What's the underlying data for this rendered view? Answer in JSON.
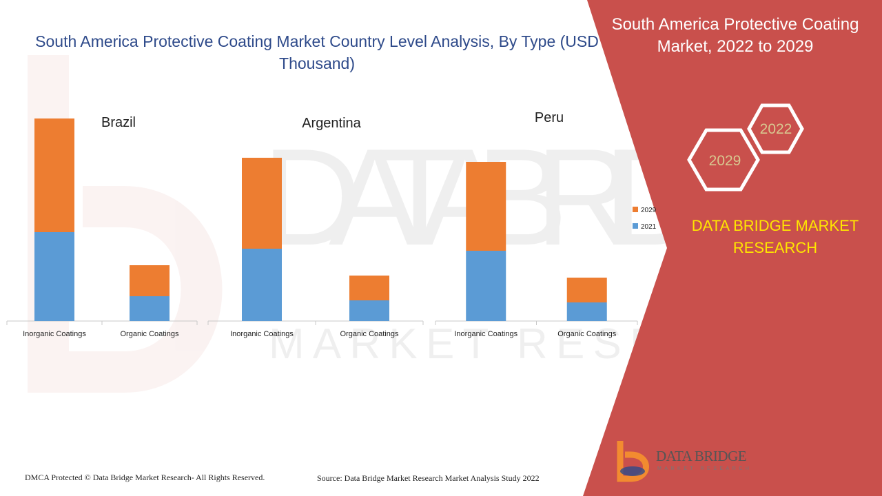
{
  "title": "South America Protective Coating Market Country Level Analysis, By Type (USD Thousand)",
  "side_panel": {
    "title": "South America Protective Coating Market, 2022 to 2029",
    "hex_years": [
      "2022",
      "2029"
    ],
    "brand": "DATA BRIDGE MARKET RESEARCH"
  },
  "footer": {
    "dmca": "DMCA Protected © Data Bridge Market Research- All Rights Reserved.",
    "source": "Source: Data Bridge Market Research Market Analysis Study 2022"
  },
  "logo": {
    "name": "DATA BRIDGE",
    "sub": "MARKET RESEARCH"
  },
  "watermark": {
    "line1": "DATA BRIDGE",
    "line2": "MARKET RESEARCH"
  },
  "colors": {
    "series_2021": "#5b9bd5",
    "series_2029": "#ed7d31",
    "panel": "#c9504c",
    "title": "#2e4a8a",
    "brand": "#ffe600"
  },
  "chart_data": [
    {
      "type": "bar",
      "stacked": true,
      "title": "Brazil",
      "categories": [
        "Inorganic Coatings",
        "Organic Coatings"
      ],
      "series": [
        {
          "name": "2021",
          "values": [
            43,
            12
          ]
        },
        {
          "name": "2029",
          "values": [
            55,
            15
          ]
        }
      ],
      "ylim": [
        0,
        100
      ],
      "grid": false
    },
    {
      "type": "bar",
      "stacked": true,
      "title": "Argentina",
      "categories": [
        "Inorganic Coatings",
        "Organic Coatings"
      ],
      "series": [
        {
          "name": "2021",
          "values": [
            35,
            10
          ]
        },
        {
          "name": "2029",
          "values": [
            44,
            12
          ]
        }
      ],
      "ylim": [
        0,
        100
      ],
      "grid": false
    },
    {
      "type": "bar",
      "stacked": true,
      "title": "Peru",
      "categories": [
        "Inorganic Coatings",
        "Organic Coatings"
      ],
      "series": [
        {
          "name": "2021",
          "values": [
            34,
            9
          ]
        },
        {
          "name": "2029",
          "values": [
            43,
            12
          ]
        }
      ],
      "ylim": [
        0,
        100
      ],
      "grid": false,
      "legend": "right",
      "legend_entries": [
        "2029",
        "2021"
      ]
    }
  ]
}
